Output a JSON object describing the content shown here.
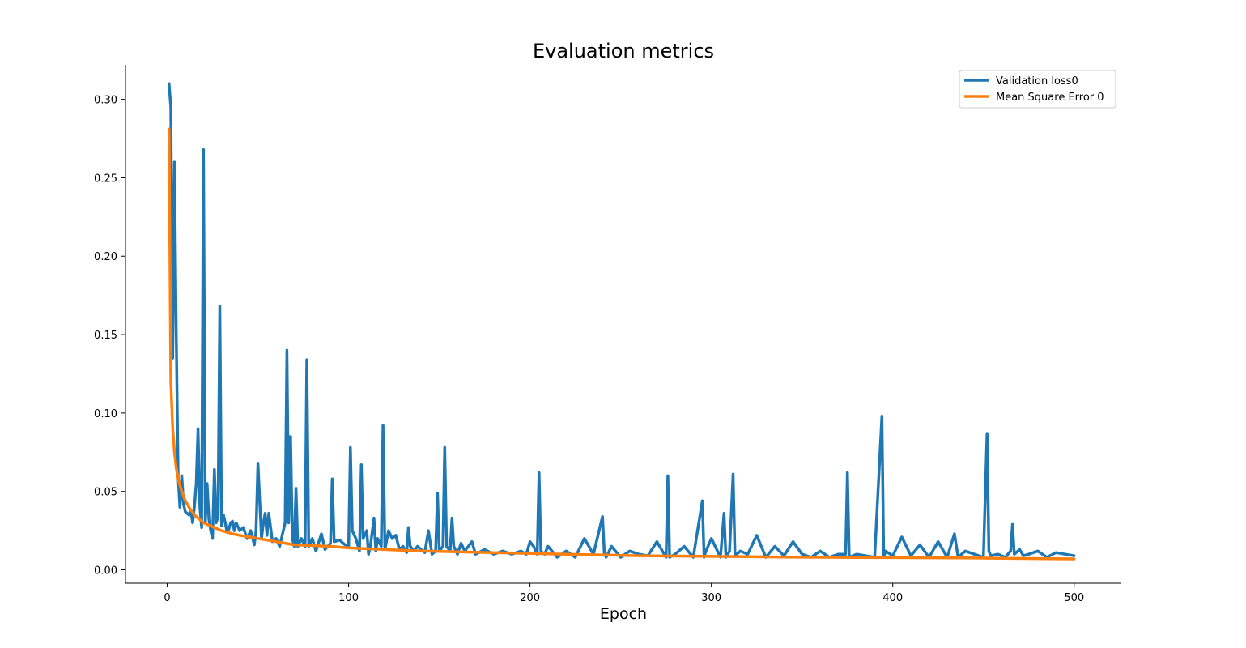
{
  "chart_data": {
    "type": "line",
    "title": "Evaluation metrics",
    "xlabel": "Epoch",
    "ylabel": "",
    "xlim": [
      -23,
      526
    ],
    "ylim": [
      -0.0085,
      0.322
    ],
    "xticks": [
      0,
      100,
      200,
      300,
      400,
      500
    ],
    "xtick_labels": [
      "0",
      "100",
      "200",
      "300",
      "400",
      "500"
    ],
    "yticks": [
      0.0,
      0.05,
      0.1,
      0.15,
      0.2,
      0.25,
      0.3
    ],
    "ytick_labels": [
      "0.00",
      "0.05",
      "0.10",
      "0.15",
      "0.20",
      "0.25",
      "0.30"
    ],
    "grid": false,
    "legend_position": "top-right",
    "series": [
      {
        "name": "Validation loss0",
        "color": "#1f77b4",
        "x": [
          1,
          2,
          3,
          4,
          5,
          6,
          7,
          8,
          9,
          10,
          11,
          12,
          13,
          14,
          15,
          16,
          17,
          18,
          19,
          20,
          21,
          22,
          23,
          24,
          25,
          26,
          27,
          28,
          29,
          30,
          31,
          32,
          33,
          34,
          35,
          36,
          37,
          38,
          40,
          42,
          44,
          46,
          48,
          49,
          50,
          52,
          53,
          54,
          55,
          56,
          58,
          60,
          62,
          64,
          65,
          66,
          67,
          68,
          69,
          70,
          71,
          72,
          74,
          76,
          77,
          78,
          80,
          82,
          85,
          87,
          90,
          91,
          92,
          95,
          98,
          100,
          101,
          102,
          104,
          106,
          107,
          108,
          110,
          111,
          112,
          114,
          115,
          116,
          118,
          119,
          120,
          122,
          124,
          126,
          128,
          130,
          132,
          133,
          134,
          136,
          138,
          140,
          142,
          144,
          146,
          148,
          149,
          150,
          152,
          153,
          154,
          156,
          157,
          158,
          160,
          162,
          164,
          166,
          168,
          170,
          175,
          180,
          185,
          190,
          195,
          198,
          200,
          202,
          204,
          205,
          206,
          208,
          210,
          215,
          220,
          225,
          230,
          235,
          240,
          241,
          242,
          245,
          250,
          255,
          260,
          265,
          270,
          275,
          276,
          277,
          280,
          285,
          290,
          295,
          296,
          297,
          300,
          305,
          307,
          308,
          310,
          312,
          313,
          314,
          316,
          320,
          325,
          330,
          335,
          340,
          345,
          350,
          355,
          360,
          365,
          370,
          374,
          375,
          376,
          380,
          385,
          390,
          394,
          395,
          396,
          400,
          405,
          410,
          415,
          420,
          425,
          430,
          434,
          436,
          440,
          445,
          450,
          452,
          453,
          454,
          458,
          462,
          465,
          466,
          467,
          470,
          472,
          475,
          480,
          485,
          490,
          495,
          500
        ],
        "y": [
          0.31,
          0.295,
          0.135,
          0.26,
          0.15,
          0.06,
          0.04,
          0.06,
          0.042,
          0.037,
          0.036,
          0.035,
          0.038,
          0.03,
          0.04,
          0.055,
          0.09,
          0.04,
          0.027,
          0.268,
          0.03,
          0.055,
          0.032,
          0.025,
          0.02,
          0.064,
          0.03,
          0.034,
          0.168,
          0.028,
          0.035,
          0.03,
          0.024,
          0.026,
          0.03,
          0.031,
          0.025,
          0.03,
          0.025,
          0.027,
          0.02,
          0.025,
          0.016,
          0.025,
          0.068,
          0.02,
          0.03,
          0.036,
          0.022,
          0.036,
          0.018,
          0.02,
          0.015,
          0.025,
          0.03,
          0.14,
          0.03,
          0.085,
          0.02,
          0.015,
          0.052,
          0.015,
          0.02,
          0.015,
          0.134,
          0.015,
          0.02,
          0.012,
          0.023,
          0.013,
          0.017,
          0.058,
          0.018,
          0.019,
          0.016,
          0.014,
          0.078,
          0.025,
          0.02,
          0.012,
          0.067,
          0.02,
          0.025,
          0.01,
          0.015,
          0.033,
          0.012,
          0.02,
          0.015,
          0.092,
          0.013,
          0.025,
          0.02,
          0.022,
          0.013,
          0.015,
          0.011,
          0.027,
          0.015,
          0.012,
          0.015,
          0.013,
          0.011,
          0.025,
          0.01,
          0.012,
          0.049,
          0.012,
          0.015,
          0.078,
          0.015,
          0.012,
          0.033,
          0.015,
          0.01,
          0.017,
          0.012,
          0.015,
          0.018,
          0.01,
          0.013,
          0.01,
          0.012,
          0.01,
          0.012,
          0.01,
          0.018,
          0.015,
          0.01,
          0.062,
          0.012,
          0.01,
          0.015,
          0.008,
          0.012,
          0.008,
          0.02,
          0.01,
          0.034,
          0.01,
          0.008,
          0.015,
          0.008,
          0.012,
          0.01,
          0.009,
          0.018,
          0.008,
          0.06,
          0.008,
          0.01,
          0.015,
          0.008,
          0.044,
          0.008,
          0.012,
          0.02,
          0.008,
          0.036,
          0.008,
          0.012,
          0.061,
          0.009,
          0.01,
          0.012,
          0.01,
          0.022,
          0.008,
          0.015,
          0.009,
          0.018,
          0.01,
          0.008,
          0.012,
          0.008,
          0.01,
          0.01,
          0.062,
          0.008,
          0.01,
          0.009,
          0.008,
          0.098,
          0.008,
          0.012,
          0.009,
          0.021,
          0.009,
          0.016,
          0.008,
          0.018,
          0.008,
          0.023,
          0.008,
          0.012,
          0.01,
          0.008,
          0.087,
          0.012,
          0.009,
          0.01,
          0.008,
          0.012,
          0.029,
          0.01,
          0.013,
          0.009,
          0.01,
          0.012,
          0.008,
          0.011,
          0.01,
          0.009
        ]
      },
      {
        "name": "Mean Square Error 0",
        "color": "#ff7f0e",
        "x": [
          1,
          2,
          3,
          4,
          5,
          6,
          7,
          8,
          9,
          10,
          11,
          12,
          13,
          14,
          15,
          16,
          17,
          18,
          20,
          22,
          24,
          26,
          28,
          30,
          33,
          36,
          40,
          45,
          50,
          55,
          60,
          65,
          70,
          80,
          90,
          100,
          120,
          140,
          160,
          180,
          200,
          220,
          240,
          260,
          280,
          300,
          320,
          340,
          360,
          380,
          400,
          420,
          440,
          460,
          480,
          500
        ],
        "y": [
          0.281,
          0.12,
          0.09,
          0.075,
          0.065,
          0.058,
          0.054,
          0.05,
          0.047,
          0.044,
          0.042,
          0.04,
          0.038,
          0.037,
          0.035,
          0.034,
          0.033,
          0.032,
          0.03,
          0.029,
          0.028,
          0.027,
          0.026,
          0.025,
          0.024,
          0.023,
          0.022,
          0.021,
          0.02,
          0.019,
          0.018,
          0.017,
          0.016,
          0.0155,
          0.015,
          0.014,
          0.013,
          0.012,
          0.0115,
          0.011,
          0.0105,
          0.01,
          0.0095,
          0.009,
          0.0088,
          0.0086,
          0.0084,
          0.0082,
          0.008,
          0.0079,
          0.0078,
          0.0077,
          0.0076,
          0.0074,
          0.0072,
          0.007
        ]
      }
    ]
  }
}
